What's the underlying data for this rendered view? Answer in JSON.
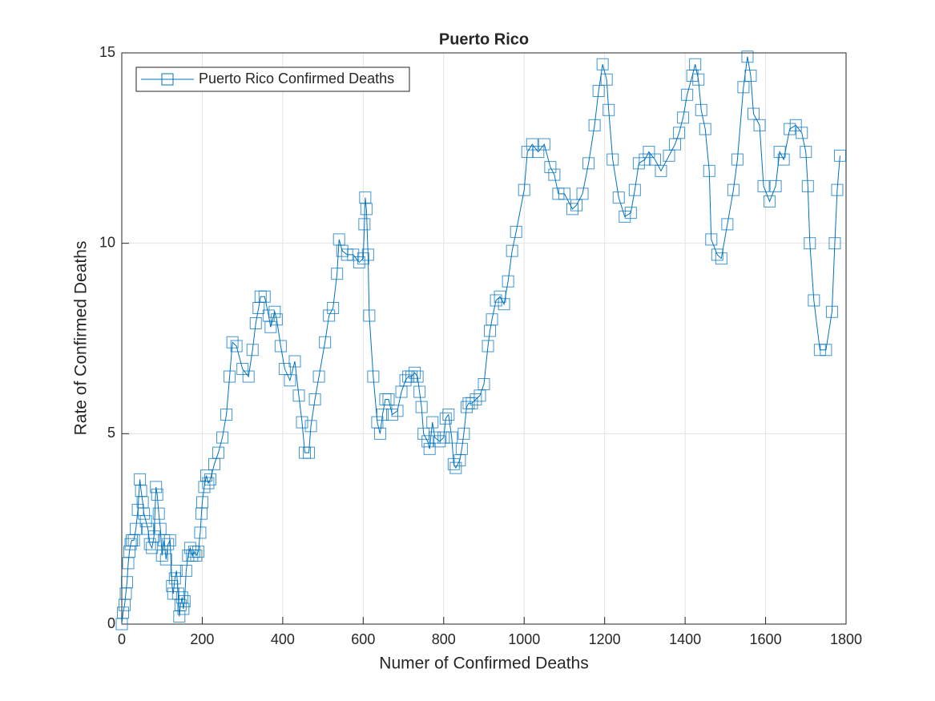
{
  "chart_data": {
    "type": "line",
    "title": "Puerto Rico",
    "xlabel": "Numer of Confirmed Deaths",
    "ylabel": "Rate of Confirmed Deaths",
    "xlim": [
      0,
      1800
    ],
    "xticks": [
      0,
      200,
      400,
      600,
      800,
      1000,
      1200,
      1400,
      1600,
      1800
    ],
    "ylim": [
      0,
      15
    ],
    "yticks": [
      0,
      5,
      10,
      15
    ],
    "grid": true,
    "legend_location": "northwest",
    "marker": "square",
    "x": [
      0,
      3,
      7,
      10,
      13,
      16,
      19,
      22,
      25,
      30,
      35,
      40,
      45,
      48,
      52,
      55,
      60,
      65,
      70,
      75,
      80,
      85,
      88,
      92,
      96,
      100,
      105,
      110,
      115,
      120,
      125,
      128,
      132,
      136,
      140,
      143,
      146,
      150,
      153,
      156,
      160,
      165,
      170,
      175,
      180,
      185,
      190,
      195,
      198,
      200,
      205,
      210,
      215,
      220,
      230,
      240,
      250,
      260,
      268,
      275,
      285,
      300,
      315,
      325,
      333,
      340,
      345,
      355,
      365,
      370,
      380,
      385,
      395,
      405,
      418,
      430,
      440,
      448,
      455,
      465,
      470,
      480,
      490,
      505,
      515,
      525,
      535,
      540,
      548,
      560,
      575,
      590,
      600,
      603,
      605,
      608,
      612,
      615,
      625,
      635,
      642,
      648,
      655,
      663,
      672,
      685,
      695,
      705,
      712,
      720,
      728,
      735,
      740,
      745,
      750,
      760,
      765,
      772,
      778,
      790,
      800,
      805,
      812,
      820,
      825,
      830,
      840,
      845,
      850,
      857,
      862,
      870,
      880,
      890,
      900,
      910,
      915,
      920,
      930,
      940,
      950,
      960,
      970,
      980,
      1000,
      1008,
      1020,
      1035,
      1050,
      1065,
      1075,
      1085,
      1100,
      1120,
      1130,
      1145,
      1160,
      1175,
      1185,
      1195,
      1205,
      1210,
      1220,
      1235,
      1250,
      1265,
      1275,
      1285,
      1300,
      1310,
      1325,
      1340,
      1360,
      1375,
      1385,
      1395,
      1405,
      1418,
      1425,
      1433,
      1440,
      1450,
      1460,
      1465,
      1480,
      1490,
      1505,
      1520,
      1530,
      1545,
      1555,
      1563,
      1570,
      1585,
      1595,
      1610,
      1625,
      1635,
      1645,
      1660,
      1675,
      1690,
      1700,
      1705,
      1710,
      1720,
      1735,
      1750,
      1765,
      1772,
      1778,
      1785
    ],
    "series": [
      {
        "name": "Puerto Rico Confirmed Deaths",
        "color": "#0072BD",
        "values": [
          0,
          0.3,
          0.5,
          0.8,
          1.1,
          1.6,
          1.9,
          2.1,
          2.2,
          2.2,
          2.5,
          3.0,
          3.8,
          3.5,
          3.2,
          2.9,
          2.7,
          2.5,
          2.1,
          2.0,
          2.3,
          3.6,
          3.4,
          2.9,
          2.5,
          1.8,
          2.2,
          1.7,
          2.1,
          2.2,
          1.0,
          0.8,
          1.2,
          1.4,
          0.8,
          0.2,
          0.5,
          0.7,
          0.4,
          0.6,
          1.4,
          1.8,
          2.0,
          1.8,
          1.9,
          1.8,
          1.9,
          2.4,
          2.9,
          3.2,
          3.6,
          3.9,
          3.7,
          3.8,
          4.2,
          4.5,
          4.9,
          5.5,
          6.5,
          7.4,
          7.3,
          6.7,
          6.5,
          7.2,
          7.9,
          8.3,
          8.6,
          8.6,
          8.1,
          7.8,
          8.2,
          8.0,
          7.3,
          6.7,
          6.4,
          6.9,
          6.0,
          5.3,
          4.5,
          4.5,
          5.2,
          5.9,
          6.5,
          7.4,
          8.1,
          8.3,
          9.2,
          10.1,
          9.8,
          9.7,
          9.7,
          9.5,
          9.6,
          10.5,
          11.2,
          10.9,
          9.7,
          8.1,
          6.5,
          5.3,
          5.0,
          5.5,
          5.9,
          5.9,
          5.5,
          5.6,
          6.1,
          6.4,
          6.5,
          6.5,
          6.6,
          6.5,
          6.1,
          5.7,
          5.0,
          4.8,
          4.6,
          5.3,
          4.9,
          4.8,
          4.9,
          5.4,
          5.5,
          4.9,
          4.2,
          4.1,
          4.3,
          4.6,
          5.0,
          5.7,
          5.8,
          5.8,
          5.9,
          6.0,
          6.3,
          7.3,
          7.7,
          8.0,
          8.5,
          8.6,
          8.4,
          9.0,
          9.8,
          10.3,
          11.4,
          12.4,
          12.6,
          12.4,
          12.6,
          12.0,
          11.8,
          11.3,
          11.3,
          10.9,
          11.0,
          11.3,
          12.1,
          13.1,
          14.0,
          14.7,
          14.3,
          13.5,
          12.2,
          11.2,
          10.7,
          10.8,
          11.4,
          12.1,
          12.2,
          12.4,
          12.2,
          11.9,
          12.3,
          12.6,
          12.9,
          13.3,
          13.9,
          14.4,
          14.7,
          14.3,
          13.5,
          13.0,
          11.9,
          10.1,
          9.7,
          9.6,
          10.5,
          11.4,
          12.2,
          14.1,
          14.9,
          14.4,
          13.4,
          13.1,
          11.5,
          11.1,
          11.5,
          12.4,
          12.2,
          13.0,
          13.1,
          12.9,
          12.4,
          11.5,
          10.0,
          8.5,
          7.2,
          7.2,
          8.2,
          10.0,
          11.4,
          12.3
        ]
      }
    ]
  }
}
